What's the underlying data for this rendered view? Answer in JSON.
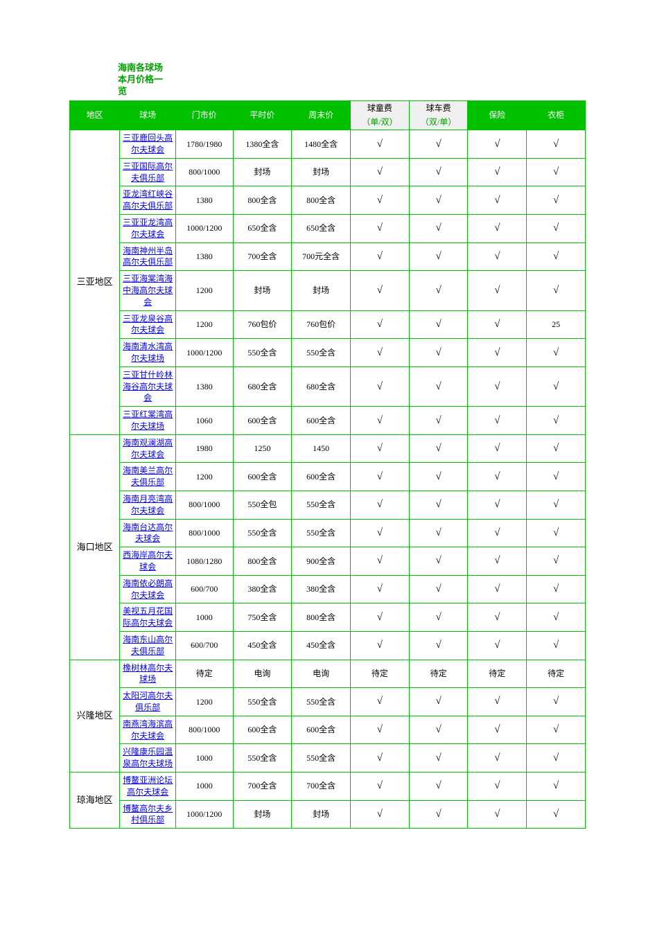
{
  "title_lines": [
    "海南各球场",
    "本月价格一",
    "览"
  ],
  "colors": {
    "header_bg": "#00c000",
    "header_text": "#ffffff",
    "border": "#00c000",
    "link": "#0000ee",
    "title": "#00a000",
    "subhead_accent": "#00a000"
  },
  "columns": [
    "地区",
    "球场",
    "门市价",
    "平时价",
    "周末价",
    {
      "top": "球童费",
      "bottom": "（单/双）"
    },
    {
      "top": "球车费",
      "bottom": "（双/单）"
    },
    "保险",
    "衣柜"
  ],
  "check_glyph": "√",
  "regions": [
    {
      "name": "三亚地区",
      "rows": [
        {
          "course": "三亚鹿回头高尔夫球会",
          "p1": "1780/1980",
          "p2": "1380全含",
          "p3": "1480全含",
          "p4": "√",
          "p5": "√",
          "p6": "√",
          "p7": "√"
        },
        {
          "course": "三亚国际高尔夫俱乐部",
          "p1": "800/1000",
          "p2": "封场",
          "p3": "封场",
          "p4": "√",
          "p5": "√",
          "p6": "√",
          "p7": "√"
        },
        {
          "course": "亚龙湾红峡谷高尔夫俱乐部",
          "p1": "1380",
          "p2": "800全含",
          "p3": "800全含",
          "p4": "√",
          "p5": "√",
          "p6": "√",
          "p7": "√"
        },
        {
          "course": "三亚亚龙湾高尔夫球会",
          "p1": "1000/1200",
          "p2": "650全含",
          "p3": "650全含",
          "p4": "√",
          "p5": "√",
          "p6": "√",
          "p7": "√"
        },
        {
          "course": "海南神州半岛高尔夫俱乐部",
          "p1": "1380",
          "p2": "700全含",
          "p3": "700元全含",
          "p4": "√",
          "p5": "√",
          "p6": "√",
          "p7": "√"
        },
        {
          "course": "三亚海棠湾海中海高尔夫球会",
          "p1": "1200",
          "p2": "封场",
          "p3": "封场",
          "p4": "√",
          "p5": "√",
          "p6": "√",
          "p7": "√"
        },
        {
          "course": "三亚龙泉谷高尔夫球会",
          "p1": "1200",
          "p2": "760包价",
          "p3": "760包价",
          "p4": "√",
          "p5": "√",
          "p6": "√",
          "p7": "25"
        },
        {
          "course": "海南清水湾高尔夫球场",
          "p1": "1000/1200",
          "p2": "550全含",
          "p3": "550全含",
          "p4": "√",
          "p5": "√",
          "p6": "√",
          "p7": "√"
        },
        {
          "course": "三亚甘什岭林海谷高尔夫球会",
          "p1": "1380",
          "p2": "680全含",
          "p3": "680全含",
          "p4": "√",
          "p5": "√",
          "p6": "√",
          "p7": "√"
        },
        {
          "course": "三亚红棠湾高尔夫球场",
          "p1": "1060",
          "p2": "600全含",
          "p3": "600全含",
          "p4": "√",
          "p5": "√",
          "p6": "√",
          "p7": "√"
        }
      ]
    },
    {
      "name": "海口地区",
      "rows": [
        {
          "course": "海南观澜湖高尔夫球会",
          "p1": "1980",
          "p2": "1250",
          "p3": "1450",
          "p4": "√",
          "p5": "√",
          "p6": "√",
          "p7": "√"
        },
        {
          "course": "海南美兰高尔夫俱乐部",
          "p1": "1200",
          "p2": "600全含",
          "p3": "600全含",
          "p4": "√",
          "p5": "√",
          "p6": "√",
          "p7": "√"
        },
        {
          "course": "海南月亮湾高尔夫球会",
          "p1": "800/1000",
          "p2": "550全包",
          "p3": "550全含",
          "p4": "√",
          "p5": "√",
          "p6": "√",
          "p7": "√"
        },
        {
          "course": "海南台达高尔夫球会",
          "p1": "800/1000",
          "p2": "550全含",
          "p3": "550全含",
          "p4": "√",
          "p5": "√",
          "p6": "√",
          "p7": "√"
        },
        {
          "course": "西海岸高尔夫球会",
          "p1": "1080/1280",
          "p2": "800全含",
          "p3": "900全含",
          "p4": "√",
          "p5": "√",
          "p6": "√",
          "p7": "√"
        },
        {
          "course": "海南依必朗高尔夫球会",
          "p1": "600/700",
          "p2": "380全含",
          "p3": "380全含",
          "p4": "√",
          "p5": "√",
          "p6": "√",
          "p7": "√"
        },
        {
          "course": "美视五月花国际高尔夫球会",
          "p1": "1000",
          "p2": "750全含",
          "p3": "800全含",
          "p4": "√",
          "p5": "√",
          "p6": "√",
          "p7": "√"
        },
        {
          "course": "海南东山高尔夫俱乐部",
          "p1": "600/700",
          "p2": "450全含",
          "p3": "450全含",
          "p4": "√",
          "p5": "√",
          "p6": "√",
          "p7": "√"
        }
      ]
    },
    {
      "name": "兴隆地区",
      "rows": [
        {
          "course": "橡树林高尔夫球场",
          "p1": "待定",
          "p2": "电询",
          "p3": "电询",
          "p4": "待定",
          "p5": "待定",
          "p6": "待定",
          "p7": "待定"
        },
        {
          "course": "太阳河高尔夫俱乐部",
          "p1": "1200",
          "p2": "550全含",
          "p3": "550全含",
          "p4": "√",
          "p5": "√",
          "p6": "√",
          "p7": "√"
        },
        {
          "course": "南燕湾海滨高尔夫球会",
          "p1": "800/1000",
          "p2": "600全含",
          "p3": "600全含",
          "p4": "√",
          "p5": "√",
          "p6": "√",
          "p7": "√"
        },
        {
          "course": "兴隆康乐园温泉高尔夫球场",
          "p1": "1000",
          "p2": "550全含",
          "p3": "550全含",
          "p4": "√",
          "p5": "√",
          "p6": "√",
          "p7": "√"
        }
      ]
    },
    {
      "name": "琼海地区",
      "rows": [
        {
          "course": "博鳌亚洲论坛高尔夫球会",
          "p1": "1000",
          "p2": "700全含",
          "p3": "700全含",
          "p4": "√",
          "p5": "√",
          "p6": "√",
          "p7": "√"
        },
        {
          "course": "博鳌高尔夫乡村俱乐部",
          "p1": "1000/1200",
          "p2": "封场",
          "p3": "封场",
          "p4": "√",
          "p5": "√",
          "p6": "√",
          "p7": "√"
        }
      ]
    }
  ]
}
